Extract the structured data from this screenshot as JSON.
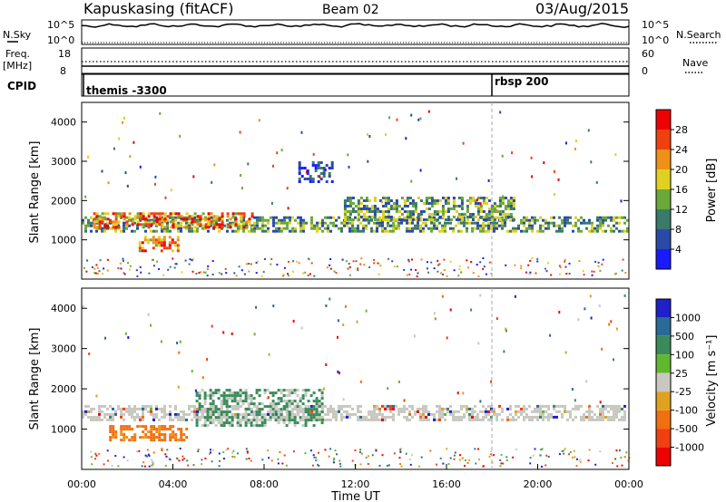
{
  "header": {
    "station": "Kapuskasing (fitACF)",
    "beam": "Beam 02",
    "date": "03/Aug/2015"
  },
  "left_labels": {
    "nsky": "N.Sky",
    "freq": "Freq.",
    "freq_unit": "[MHz]",
    "cpid": "CPID"
  },
  "right_labels": {
    "nsearch": "N.Search",
    "nave": "Nave"
  },
  "noise_panel": {
    "left_ticks": [
      "10^5",
      "10^0"
    ],
    "right_ticks": [
      "10^5",
      "10^0"
    ]
  },
  "freq_panel": {
    "left_ticks": [
      "18",
      "8"
    ],
    "right_ticks": [
      "60",
      "0"
    ]
  },
  "cpid_panel": {
    "segments": [
      {
        "start_hour": 0.0,
        "label": "themis -3300"
      },
      {
        "start_hour": 18.0,
        "label": "rbsp 200"
      }
    ]
  },
  "chart_data": [
    {
      "type": "heatmap",
      "quantity": "Power",
      "ylabel": "Slant Range [km]",
      "ylim": [
        0,
        4500
      ],
      "xlim": [
        0,
        24
      ],
      "yticks": [
        "1000",
        "2000",
        "3000",
        "4000"
      ],
      "ytick_values": [
        1000,
        2000,
        3000,
        4000
      ],
      "colorbar": {
        "label": "Power [dB]",
        "ticks": [
          "4",
          "8",
          "12",
          "16",
          "20",
          "24",
          "28"
        ],
        "colors": [
          "#1a1aff",
          "#2a4aa8",
          "#3a7a6a",
          "#6aa83a",
          "#e0d020",
          "#f09018",
          "#f04010",
          "#ee0000"
        ],
        "range": [
          0,
          30
        ]
      },
      "echo_regions": [
        {
          "t": [
            0.0,
            24.0
          ],
          "r": [
            1200,
            1600
          ],
          "level": "mid"
        },
        {
          "t": [
            0.5,
            7.5
          ],
          "r": [
            1300,
            1700
          ],
          "level": "high"
        },
        {
          "t": [
            2.5,
            4.2
          ],
          "r": [
            700,
            1100
          ],
          "level": "high"
        },
        {
          "t": [
            9.5,
            11.0
          ],
          "r": [
            2500,
            3000
          ],
          "level": "low"
        },
        {
          "t": [
            11.5,
            19.0
          ],
          "r": [
            1500,
            2100
          ],
          "level": "mid"
        }
      ]
    },
    {
      "type": "heatmap",
      "quantity": "Velocity",
      "ylabel": "Slant Range [km]",
      "ylim": [
        0,
        4500
      ],
      "xlim": [
        0,
        24
      ],
      "yticks": [
        "1000",
        "2000",
        "3000",
        "4000"
      ],
      "ytick_values": [
        1000,
        2000,
        3000,
        4000
      ],
      "xticks": [
        "00:00",
        "04:00",
        "08:00",
        "12:00",
        "16:00",
        "20:00",
        "00:00"
      ],
      "xtick_values": [
        0,
        4,
        8,
        12,
        16,
        20,
        24
      ],
      "xlabel": "Time UT",
      "colorbar": {
        "label": "Velocity [m s⁻¹]",
        "ticks": [
          "1000",
          "500",
          "100",
          "25",
          "-25",
          "-100",
          "-500",
          "-1000"
        ],
        "colors": [
          "#2020c8",
          "#2a6a98",
          "#3a8a5a",
          "#60b830",
          "#c8c8c0",
          "#e0a020",
          "#f07010",
          "#f04010",
          "#ee0000"
        ],
        "range": [
          -1000,
          1000
        ]
      },
      "echo_regions": [
        {
          "t": [
            0.0,
            24.0
          ],
          "r": [
            1200,
            1600
          ],
          "level": "ground"
        },
        {
          "t": [
            1.2,
            4.6
          ],
          "r": [
            700,
            1100
          ],
          "level": "negative"
        },
        {
          "t": [
            5.0,
            10.5
          ],
          "r": [
            1100,
            2000
          ],
          "level": "positive"
        }
      ]
    }
  ]
}
